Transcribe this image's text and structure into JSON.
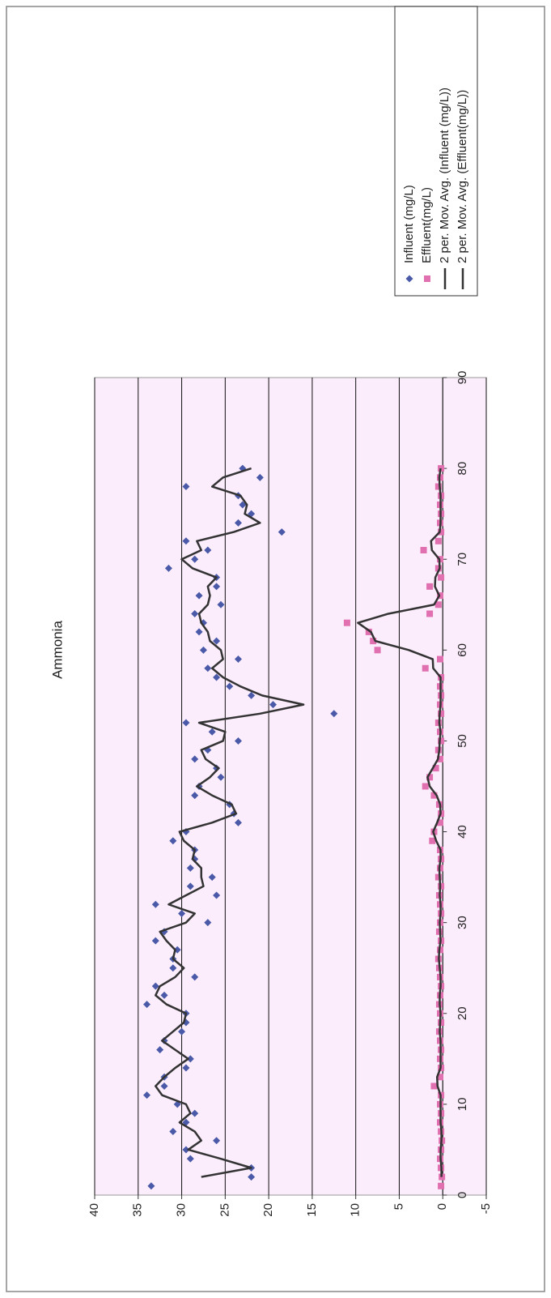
{
  "chart_data": {
    "type": "scatter",
    "title": "Ammonia",
    "x": [
      1,
      2,
      3,
      4,
      5,
      6,
      7,
      8,
      9,
      10,
      11,
      12,
      13,
      14,
      15,
      16,
      17,
      18,
      19,
      20,
      21,
      22,
      23,
      24,
      25,
      26,
      27,
      28,
      29,
      30,
      31,
      32,
      33,
      34,
      35,
      36,
      37,
      38,
      39,
      40,
      41,
      42,
      43,
      44,
      45,
      46,
      47,
      48,
      49,
      50,
      51,
      52,
      53,
      54,
      55,
      56,
      57,
      58,
      59,
      60,
      61,
      62,
      63,
      64,
      65,
      66,
      67,
      68,
      69,
      70,
      71,
      72,
      73,
      74,
      75,
      76,
      77,
      78,
      79,
      80
    ],
    "series": [
      {
        "name": "Influent (mg/L)",
        "color": "#4a5aa8",
        "style": "diamond",
        "values": [
          33.5,
          22,
          22,
          29,
          29.5,
          26,
          31,
          29.5,
          28.5,
          30.5,
          34,
          32,
          32,
          29.5,
          29,
          32.5,
          32,
          30,
          29.5,
          29.5,
          34,
          32,
          33,
          28.5,
          31,
          31,
          30.5,
          33,
          32,
          27,
          30,
          33,
          26,
          29,
          26.5,
          29,
          28.5,
          28.5,
          31,
          29.5,
          23.5,
          24,
          24.5,
          28.5,
          28,
          25.5,
          26,
          28.5,
          27,
          23.5,
          26.5,
          29.5,
          12.5,
          19.5,
          22,
          24.5,
          26,
          27,
          23.5,
          27.5,
          26,
          28,
          27.5,
          28.5,
          25.5,
          28,
          26,
          26,
          31.5,
          28.5,
          27,
          29.5,
          18.5,
          23.5,
          22,
          23,
          23.5,
          29.5,
          21,
          23
        ]
      },
      {
        "name": "Effluent(mg/L)",
        "color": "#e070b0",
        "style": "square",
        "values": [
          0.2,
          0.1,
          0.2,
          0.3,
          0.2,
          0.1,
          0.2,
          0.3,
          0.2,
          0.3,
          0.2,
          1.0,
          0.3,
          0.2,
          0.3,
          0.2,
          0.3,
          0.4,
          0.2,
          0.3,
          0.4,
          0.3,
          0.2,
          0.3,
          0.4,
          0.5,
          0.3,
          0.2,
          0.4,
          0.3,
          0.2,
          0.3,
          0.4,
          0.2,
          0.5,
          0.3,
          0.2,
          0.3,
          1.2,
          1.0,
          0.3,
          0.2,
          0.4,
          1.0,
          2.0,
          1.5,
          0.8,
          0.3,
          0.5,
          0.2,
          0.3,
          0.5,
          0.2,
          0.3,
          0.2,
          0.3,
          0.2,
          2.0,
          0.3,
          7.5,
          8.0,
          8.5,
          11.0,
          1.5,
          0.5,
          0.3,
          1.5,
          0.2,
          0.5,
          0.3,
          2.2,
          0.5,
          0.2,
          0.3,
          0.2,
          0.3,
          0.2,
          0.5,
          0.3,
          0.2
        ]
      },
      {
        "name": "2 per. Mov. Avg. (Influent (mg/L))",
        "color": "#333333",
        "style": "line",
        "values": [
          null,
          27.75,
          22,
          25.5,
          29.25,
          27.75,
          28.5,
          30.25,
          29,
          29.5,
          32.25,
          33,
          32,
          30.75,
          29.25,
          30.75,
          32.25,
          31,
          29.75,
          29.5,
          31.75,
          33,
          32.5,
          30.75,
          29.75,
          31,
          30.75,
          31.75,
          32.5,
          29.5,
          28.5,
          31.5,
          29.5,
          27.5,
          27.75,
          27.75,
          28.75,
          28.5,
          29.75,
          30.25,
          26.5,
          23.75,
          24.25,
          26.5,
          28.25,
          26.75,
          25.75,
          27.25,
          27.75,
          25.25,
          25,
          28,
          21,
          16,
          20.75,
          23.25,
          25.25,
          26.5,
          25.25,
          25.5,
          26.75,
          27,
          27.75,
          28,
          27,
          26.75,
          27,
          26,
          28.75,
          30,
          27.75,
          28.25,
          24,
          21,
          22.75,
          22.5,
          23.25,
          26.5,
          25.25,
          22
        ]
      },
      {
        "name": "2 per. Mov. Avg. (Effluent(mg/L))",
        "color": "#333333",
        "style": "line",
        "values": [
          null,
          0.15,
          0.15,
          0.25,
          0.25,
          0.15,
          0.15,
          0.25,
          0.25,
          0.25,
          0.25,
          0.6,
          0.65,
          0.25,
          0.25,
          0.25,
          0.25,
          0.35,
          0.3,
          0.25,
          0.35,
          0.35,
          0.25,
          0.25,
          0.35,
          0.45,
          0.4,
          0.25,
          0.3,
          0.35,
          0.25,
          0.25,
          0.35,
          0.3,
          0.35,
          0.4,
          0.25,
          0.25,
          0.75,
          1.1,
          0.65,
          0.25,
          0.3,
          0.7,
          1.5,
          1.75,
          1.15,
          0.55,
          0.4,
          0.35,
          0.25,
          0.4,
          0.35,
          0.25,
          0.25,
          0.25,
          0.25,
          1.1,
          1.15,
          3.9,
          7.75,
          8.25,
          9.75,
          6.25,
          1.0,
          0.4,
          0.9,
          0.85,
          0.35,
          0.4,
          1.25,
          1.35,
          0.35,
          0.25,
          0.25,
          0.25,
          0.25,
          0.35,
          0.4,
          0.25
        ]
      }
    ],
    "xlim": [
      0,
      90
    ],
    "xticks": [
      0,
      10,
      20,
      30,
      40,
      50,
      60,
      70,
      80,
      90
    ],
    "ylim": [
      -5,
      40
    ],
    "yticks": [
      -5,
      0,
      5,
      10,
      15,
      20,
      25,
      30,
      35,
      40
    ],
    "grid": true,
    "legend": "right",
    "background": "#fcedfc"
  }
}
